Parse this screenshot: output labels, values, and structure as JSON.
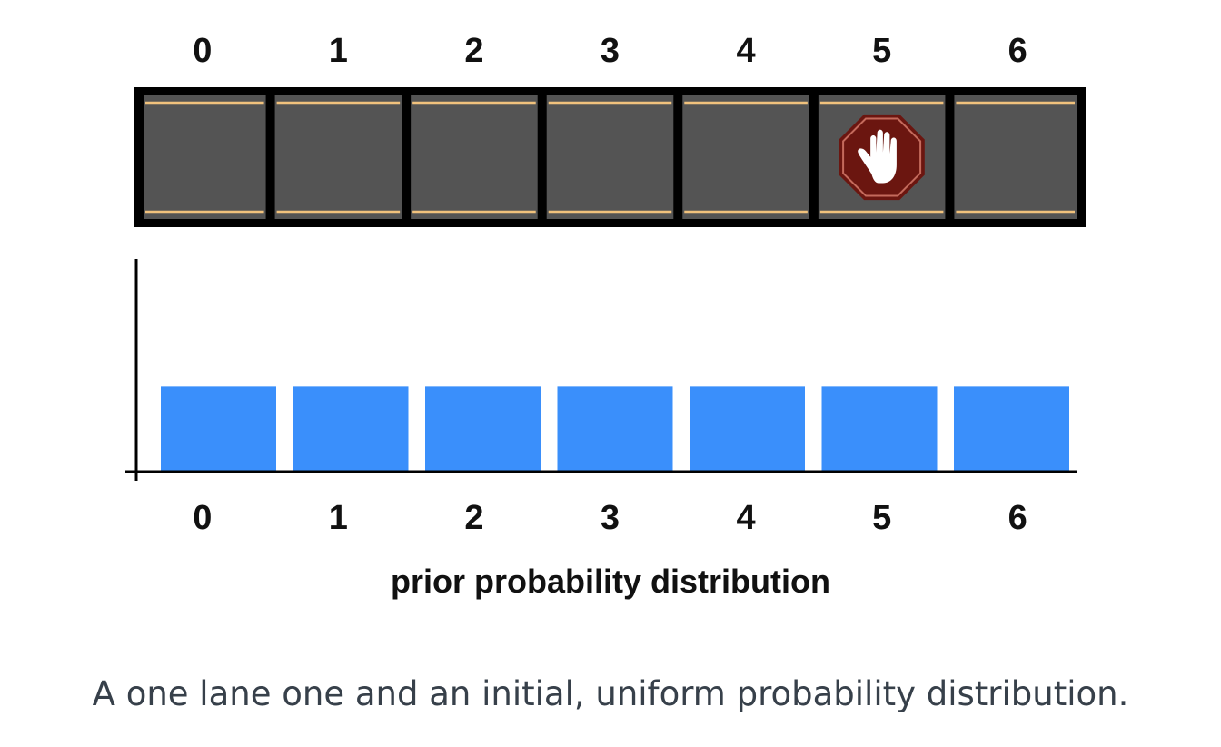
{
  "chart_data": {
    "type": "bar",
    "categories": [
      "0",
      "1",
      "2",
      "3",
      "4",
      "5",
      "6"
    ],
    "values": [
      0.142857,
      0.142857,
      0.142857,
      0.142857,
      0.142857,
      0.142857,
      0.142857
    ],
    "title": "",
    "xlabel": "prior probability distribution",
    "ylabel": "",
    "ylim": [
      0,
      0.357
    ],
    "grid": false,
    "legend": "none"
  },
  "lane": {
    "cell_labels": [
      "0",
      "1",
      "2",
      "3",
      "4",
      "5",
      "6"
    ],
    "stop_sign_cell": 5,
    "stop_sign_icon": "stop-hand-icon"
  },
  "colors": {
    "road": "#545454",
    "road_border": "#000000",
    "lane_line": "#f1c27d",
    "bar": "#3a8ffb",
    "stop_sign": "#6b1610",
    "caption": "#37404a"
  },
  "caption": "A one lane one and an initial, uniform probability distribution."
}
